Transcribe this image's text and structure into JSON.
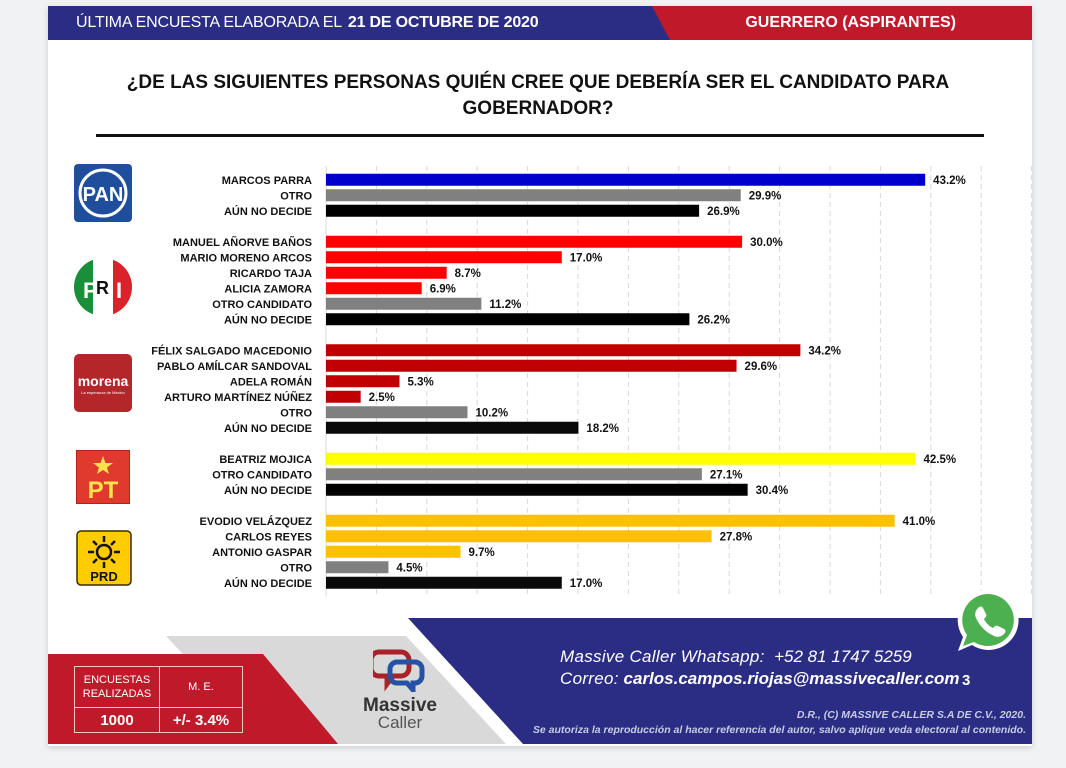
{
  "header": {
    "left_prefix": "ÚLTIMA ENCUESTA ELABORADA EL",
    "left_date": "21 DE OCTUBRE DE 2020",
    "right_label": "GUERRERO (ASPIRANTES)"
  },
  "title": "¿DE LAS SIGUIENTES PERSONAS QUIÉN CREE QUE DEBERÍA SER EL CANDIDATO PARA GOBERNADOR?",
  "colors": {
    "header_blue": "#2b2d84",
    "header_red": "#c0192a",
    "pan_blue": "#0000cc",
    "pri_red": "#ff0000",
    "morena_red": "#c00000",
    "pt_yellow": "#ffff00",
    "prd_yellow": "#ffc000",
    "otro_gray": "#808080",
    "no_decide_black": "#000000"
  },
  "chart_data": {
    "type": "bar",
    "orientation": "horizontal",
    "title": "¿DE LAS SIGUIENTES PERSONAS QUIÉN CREE QUE DEBERÍA SER EL CANDIDATO PARA GOBERNADOR?",
    "xlabel": "",
    "ylabel": "",
    "xlim": [
      0,
      50
    ],
    "grid": true,
    "value_suffix": "%",
    "groups": [
      {
        "party": "PAN",
        "logo_text": "PAN",
        "items": [
          {
            "label": "MARCOS PARRA",
            "value": 43.2,
            "color": "#0000cc"
          },
          {
            "label": "OTRO",
            "value": 29.9,
            "color": "#808080"
          },
          {
            "label": "AÚN NO DECIDE",
            "value": 26.9,
            "color": "#000000"
          }
        ]
      },
      {
        "party": "PRI",
        "logo_text": "PRI",
        "items": [
          {
            "label": "MANUEL AÑORVE BAÑOS",
            "value": 30.0,
            "color": "#ff0000"
          },
          {
            "label": "MARIO MORENO ARCOS",
            "value": 17.0,
            "color": "#ff0000"
          },
          {
            "label": "RICARDO TAJA",
            "value": 8.7,
            "color": "#ff0000"
          },
          {
            "label": "ALICIA ZAMORA",
            "value": 6.9,
            "color": "#ff0000"
          },
          {
            "label": "OTRO CANDIDATO",
            "value": 11.2,
            "color": "#808080"
          },
          {
            "label": "AÚN NO DECIDE",
            "value": 26.2,
            "color": "#000000"
          }
        ]
      },
      {
        "party": "MORENA",
        "logo_text": "morena",
        "logo_subtext": "La esperanza de México",
        "items": [
          {
            "label": "FÉLIX SALGADO MACEDONIO",
            "value": 34.2,
            "color": "#c00000"
          },
          {
            "label": "PABLO AMÍLCAR SANDOVAL",
            "value": 29.6,
            "color": "#c00000"
          },
          {
            "label": "ADELA ROMÁN",
            "value": 5.3,
            "color": "#c00000"
          },
          {
            "label": "ARTURO MARTÍNEZ NÚÑEZ",
            "value": 2.5,
            "color": "#c00000"
          },
          {
            "label": "OTRO",
            "value": 10.2,
            "color": "#808080"
          },
          {
            "label": "AÚN NO DECIDE",
            "value": 18.2,
            "color": "#0a0a0a"
          }
        ]
      },
      {
        "party": "PT",
        "logo_text": "PT",
        "items": [
          {
            "label": "BEATRIZ MOJICA",
            "value": 42.5,
            "color": "#ffff00"
          },
          {
            "label": "OTRO CANDIDATO",
            "value": 27.1,
            "color": "#808080"
          },
          {
            "label": "AÚN NO DECIDE",
            "value": 30.4,
            "color": "#000000"
          }
        ]
      },
      {
        "party": "PRD",
        "logo_text": "PRD",
        "items": [
          {
            "label": "EVODIO VELÁZQUEZ",
            "value": 41.0,
            "color": "#ffc000"
          },
          {
            "label": "CARLOS REYES",
            "value": 27.8,
            "color": "#ffc000"
          },
          {
            "label": "ANTONIO GASPAR",
            "value": 9.7,
            "color": "#ffc000"
          },
          {
            "label": "OTRO",
            "value": 4.5,
            "color": "#808080"
          },
          {
            "label": "AÚN NO DECIDE",
            "value": 17.0,
            "color": "#0a0a0a"
          }
        ]
      }
    ]
  },
  "footer": {
    "stats": {
      "surveys_label": "ENCUESTAS REALIZADAS",
      "surveys_value": "1000",
      "me_label": "M. E.",
      "me_value": "+/- 3.4%"
    },
    "brand_line1": "Massive",
    "brand_line2": "Caller",
    "whatsapp_label": "Massive Caller Whatsapp:",
    "whatsapp_number": "+52 81 1747 5259",
    "email_label": "Correo:",
    "email": "carlos.campos.riojas@massivecaller.com",
    "page_number": "3",
    "legal_line1": "D.R., (C) MASSIVE CALLER S.A DE C.V., 2020.",
    "legal_line2": "Se autoriza la reproducción al hacer referencia del autor, salvo aplique veda electoral al contenido."
  }
}
